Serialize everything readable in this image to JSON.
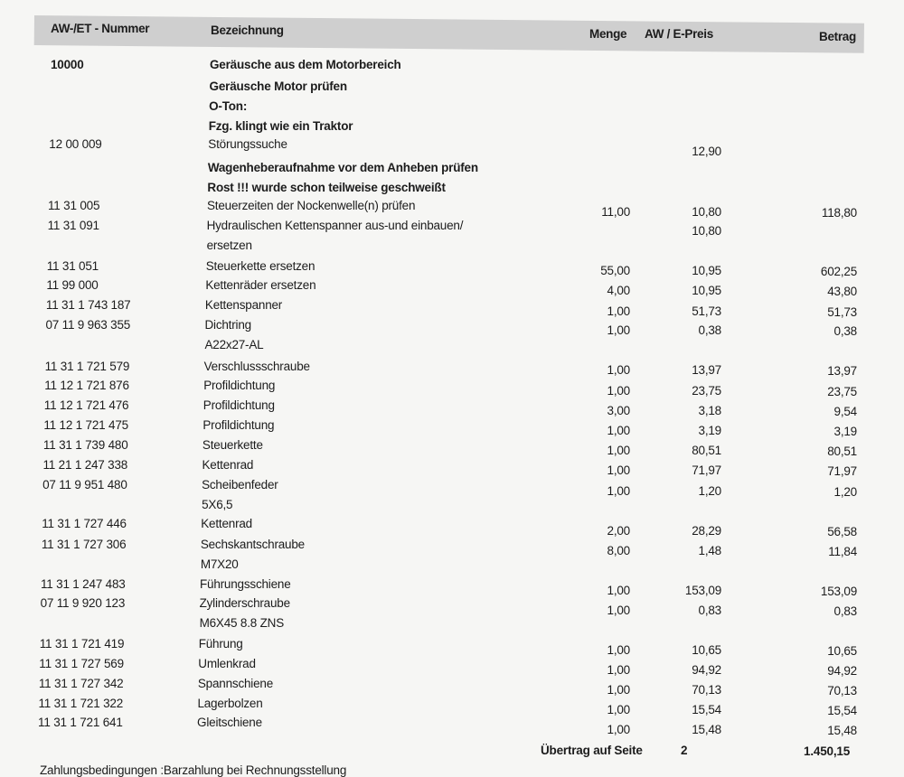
{
  "header": {
    "number": "AW-/ET - Nummer",
    "description": "Bezeichnung",
    "quantity": "Menge",
    "price": "AW / E-Preis",
    "amount": "Betrag"
  },
  "rows": [
    {
      "number": "10000",
      "lines": [
        "Geräusche aus dem Motorbereich"
      ],
      "bold": true
    },
    {
      "number": "",
      "lines": [
        "Geräusche Motor prüfen"
      ],
      "bold": true
    },
    {
      "number": "",
      "lines": [
        "O-Ton:"
      ],
      "bold": true
    },
    {
      "number": "",
      "lines": [
        "Fzg. klingt wie ein Traktor"
      ],
      "bold": true
    },
    {
      "number": "12 00 009",
      "lines": [
        "Störungssuche"
      ],
      "price": "12,90"
    },
    {
      "number": "",
      "lines": [
        "Wagenheberaufnahme vor dem Anheben prüfen"
      ],
      "bold": true
    },
    {
      "number": "",
      "lines": [
        "Rost !!!  wurde schon teilweise geschweißt"
      ],
      "bold": true
    },
    {
      "number": "11 31 005",
      "lines": [
        "Steuerzeiten der Nockenwelle(n) prüfen"
      ],
      "qty": "11,00",
      "price": "10,80",
      "amount": "118,80"
    },
    {
      "number": "11 31 091",
      "lines": [
        "Hydraulischen Kettenspanner aus-und einbauen/",
        "ersetzen"
      ],
      "price": "10,80"
    },
    {
      "number": "11 31 051",
      "lines": [
        "Steuerkette ersetzen"
      ],
      "qty": "55,00",
      "price": "10,95",
      "amount": "602,25"
    },
    {
      "number": "11 99 000",
      "lines": [
        "Kettenräder ersetzen"
      ],
      "qty": "4,00",
      "price": "10,95",
      "amount": "43,80"
    },
    {
      "number": "11 31 1 743 187",
      "lines": [
        "Kettenspanner"
      ],
      "qty": "1,00",
      "price": "51,73",
      "amount": "51,73"
    },
    {
      "number": "07 11 9 963 355",
      "lines": [
        "Dichtring",
        "A22x27-AL"
      ],
      "qty": "1,00",
      "price": "0,38",
      "amount": "0,38"
    },
    {
      "number": "11 31 1 721 579",
      "lines": [
        "Verschlussschraube"
      ],
      "qty": "1,00",
      "price": "13,97",
      "amount": "13,97"
    },
    {
      "number": "11 12 1 721 876",
      "lines": [
        "Profildichtung"
      ],
      "qty": "1,00",
      "price": "23,75",
      "amount": "23,75"
    },
    {
      "number": "11 12 1 721 476",
      "lines": [
        "Profildichtung"
      ],
      "qty": "3,00",
      "price": "3,18",
      "amount": "9,54"
    },
    {
      "number": "11 12 1 721 475",
      "lines": [
        "Profildichtung"
      ],
      "qty": "1,00",
      "price": "3,19",
      "amount": "3,19"
    },
    {
      "number": "11 31 1 739 480",
      "lines": [
        "Steuerkette"
      ],
      "qty": "1,00",
      "price": "80,51",
      "amount": "80,51"
    },
    {
      "number": "11 21 1 247 338",
      "lines": [
        "Kettenrad"
      ],
      "qty": "1,00",
      "price": "71,97",
      "amount": "71,97"
    },
    {
      "number": "07 11 9 951 480",
      "lines": [
        "Scheibenfeder",
        "5X6,5"
      ],
      "qty": "1,00",
      "price": "1,20",
      "amount": "1,20"
    },
    {
      "number": "11 31 1 727 446",
      "lines": [
        "Kettenrad"
      ],
      "qty": "2,00",
      "price": "28,29",
      "amount": "56,58"
    },
    {
      "number": "11 31 1 727 306",
      "lines": [
        "Sechskantschraube",
        "M7X20"
      ],
      "qty": "8,00",
      "price": "1,48",
      "amount": "11,84"
    },
    {
      "number": "11 31 1 247 483",
      "lines": [
        "Führungsschiene"
      ],
      "qty": "1,00",
      "price": "153,09",
      "amount": "153,09"
    },
    {
      "number": "07 11 9 920 123",
      "lines": [
        "Zylinderschraube",
        "M6X45 8.8 ZNS"
      ],
      "qty": "1,00",
      "price": "0,83",
      "amount": "0,83"
    },
    {
      "number": "11 31 1 721 419",
      "lines": [
        "Führung"
      ],
      "qty": "1,00",
      "price": "10,65",
      "amount": "10,65"
    },
    {
      "number": "11 31 1 727 569",
      "lines": [
        "Umlenkrad"
      ],
      "qty": "1,00",
      "price": "94,92",
      "amount": "94,92"
    },
    {
      "number": "11 31 1 727 342",
      "lines": [
        "Spannschiene"
      ],
      "qty": "1,00",
      "price": "70,13",
      "amount": "70,13"
    },
    {
      "number": "11 31 1 721 322",
      "lines": [
        "Lagerbolzen"
      ],
      "qty": "1,00",
      "price": "15,54",
      "amount": "15,54"
    },
    {
      "number": "11 31 1 721 641",
      "lines": [
        "Gleitschiene"
      ],
      "qty": "1,00",
      "price": "15,48",
      "amount": "15,48"
    }
  ],
  "carry": {
    "label": "Übertrag auf Seite",
    "page": "2",
    "amount": "1.450,15"
  },
  "footer": "Zahlungsbedingungen :Barzahlung bei Rechnungsstellung"
}
